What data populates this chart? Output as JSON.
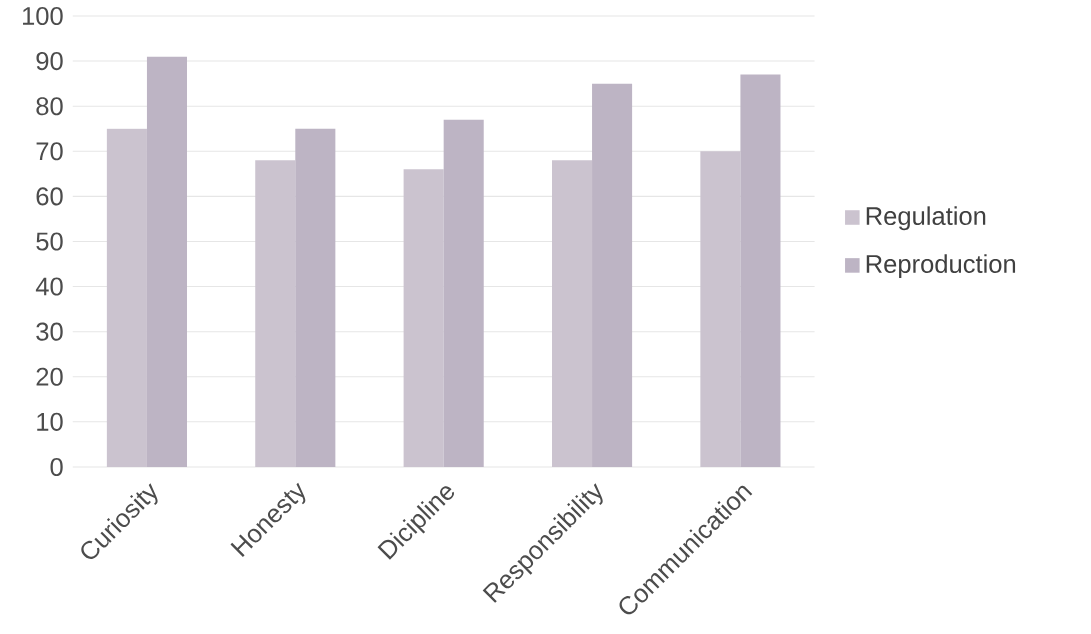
{
  "chart_data": {
    "type": "bar",
    "categories": [
      "Curiosity",
      "Honesty",
      "Dicipline",
      "Responsibility",
      "Communication"
    ],
    "series": [
      {
        "name": "Regulation",
        "color": "#cbc3cf",
        "values": [
          75,
          68,
          66,
          68,
          70
        ]
      },
      {
        "name": "Reproduction",
        "color": "#bdb4c4",
        "values": [
          91,
          75,
          77,
          85,
          87
        ]
      }
    ],
    "ylim": [
      0,
      100
    ],
    "yticks": [
      0,
      10,
      20,
      30,
      40,
      50,
      60,
      70,
      80,
      90,
      100
    ],
    "grid": "y",
    "legend": "right"
  }
}
